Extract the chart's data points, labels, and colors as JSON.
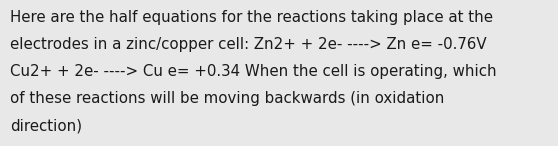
{
  "background_color": "#e8e8e8",
  "text_color": "#1a1a1a",
  "font_size": 10.8,
  "fig_width": 5.58,
  "fig_height": 1.46,
  "line1": "Here are the half equations for the reactions taking place at the",
  "line2": "electrodes in a zinc/copper cell: Zn2+ + 2e- ----> Zn e= -0.76V",
  "line3": "Cu2+ + 2e- ----> Cu e= +0.34 When the cell is operating, which",
  "line4": "of these reactions will be moving backwards (in oxidation",
  "line5": "direction)"
}
